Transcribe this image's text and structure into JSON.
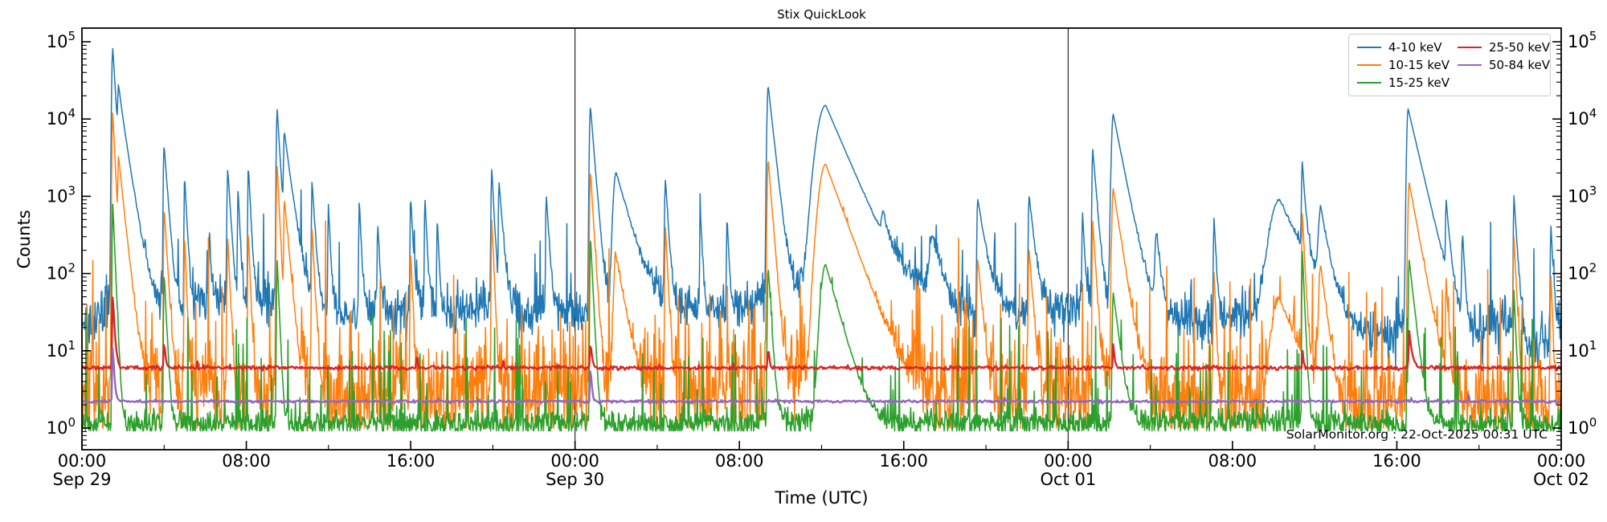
{
  "title": "Stix QuickLook",
  "xlabel": "Time (UTC)",
  "ylabel": "Counts",
  "watermark": "SolarMonitor.org : 22-Oct-2025 00:31 UTC",
  "chart_data": {
    "type": "line",
    "title": "Stix QuickLook",
    "xlabel": "Time (UTC)",
    "ylabel": "Counts",
    "x_axis": {
      "unit": "hours since Sep 29 00:00 UTC",
      "range_hours": [
        0,
        72
      ],
      "major_ticks": [
        {
          "t": 0,
          "label": "00:00",
          "date": "Sep 29"
        },
        {
          "t": 8,
          "label": "08:00",
          "date": ""
        },
        {
          "t": 16,
          "label": "16:00",
          "date": ""
        },
        {
          "t": 24,
          "label": "00:00",
          "date": "Sep 30"
        },
        {
          "t": 32,
          "label": "08:00",
          "date": ""
        },
        {
          "t": 40,
          "label": "16:00",
          "date": ""
        },
        {
          "t": 48,
          "label": "00:00",
          "date": "Oct 01"
        },
        {
          "t": 56,
          "label": "08:00",
          "date": ""
        },
        {
          "t": 64,
          "label": "16:00",
          "date": ""
        },
        {
          "t": 72,
          "label": "00:00",
          "date": "Oct 02"
        }
      ],
      "minor_tick_step_hours": 4,
      "day_boundary_lines_hours": [
        24,
        48
      ]
    },
    "y_axis": {
      "scale": "log",
      "range_log10": [
        -0.28,
        5.18
      ],
      "decade_labels": [
        0,
        1,
        2,
        3,
        4,
        5
      ],
      "labels_on_both_sides": true
    },
    "legend": {
      "position": "upper right",
      "entries": [
        {
          "label": "4-10 keV",
          "color": "#1f77b4"
        },
        {
          "label": "10-15 keV",
          "color": "#ff7f0e"
        },
        {
          "label": "15-25 keV",
          "color": "#2ca02c"
        },
        {
          "label": "25-50 keV",
          "color": "#d62728"
        },
        {
          "label": "50-84 keV",
          "color": "#9467bd"
        }
      ]
    },
    "series": [
      {
        "name": "4-10 keV",
        "color": "#1f77b4",
        "lw": 1.5,
        "n": 2600,
        "seed": 11,
        "noise_sigma_log10": 0.16,
        "burst": {
          "p": 0.012,
          "mag": 1.2
        },
        "floor": 6,
        "baseline_log10": [
          [
            0,
            1.3
          ],
          [
            1,
            1.5
          ],
          [
            2.5,
            1.85
          ],
          [
            3.2,
            1.7
          ],
          [
            4.5,
            1.55
          ],
          [
            6.5,
            1.7
          ],
          [
            7.5,
            1.55
          ],
          [
            9,
            1.7
          ],
          [
            10.5,
            1.75
          ],
          [
            12,
            1.5
          ],
          [
            13.5,
            1.45
          ],
          [
            14.5,
            1.6
          ],
          [
            15.5,
            1.45
          ],
          [
            16.5,
            1.7
          ],
          [
            17.5,
            1.5
          ],
          [
            18.5,
            1.55
          ],
          [
            20.5,
            1.7
          ],
          [
            21.5,
            1.5
          ],
          [
            23,
            1.45
          ],
          [
            24.5,
            1.5
          ],
          [
            25.5,
            1.6
          ],
          [
            27,
            1.65
          ],
          [
            28.5,
            1.55
          ],
          [
            29.5,
            1.6
          ],
          [
            31,
            1.5
          ],
          [
            32.5,
            1.55
          ],
          [
            34.5,
            1.8
          ],
          [
            35.5,
            1.75
          ],
          [
            37,
            1.7
          ],
          [
            38,
            1.6
          ],
          [
            39.5,
            1.8
          ],
          [
            40.5,
            1.75
          ],
          [
            41.5,
            1.85
          ],
          [
            42.5,
            1.55
          ],
          [
            43.5,
            1.5
          ],
          [
            44.5,
            1.65
          ],
          [
            45.5,
            1.5
          ],
          [
            46.5,
            1.55
          ],
          [
            48,
            1.5
          ],
          [
            49,
            1.6
          ],
          [
            50.8,
            1.7
          ],
          [
            52,
            1.45
          ],
          [
            53.5,
            1.5
          ],
          [
            54.5,
            1.35
          ],
          [
            56,
            1.45
          ],
          [
            57,
            1.55
          ],
          [
            58,
            1.7
          ],
          [
            59,
            1.75
          ],
          [
            60,
            1.7
          ],
          [
            61,
            1.5
          ],
          [
            62,
            1.25
          ],
          [
            63.5,
            1.15
          ],
          [
            65,
            1.5
          ],
          [
            66,
            1.35
          ],
          [
            67.5,
            1.15
          ],
          [
            68.5,
            1.3
          ],
          [
            69.5,
            1.4
          ],
          [
            70.5,
            1.1
          ],
          [
            71.5,
            1.15
          ],
          [
            72,
            1.3
          ]
        ],
        "flares": [
          [
            1.5,
            82000,
            0.05,
            0.1
          ],
          [
            1.78,
            23000,
            0.04,
            0.25
          ],
          [
            4.0,
            4500,
            0.04,
            0.12
          ],
          [
            5.0,
            1800,
            0.03,
            0.08
          ],
          [
            6.2,
            300,
            0.03,
            0.06
          ],
          [
            7.1,
            2200,
            0.04,
            0.1
          ],
          [
            7.6,
            1200,
            0.03,
            0.07
          ],
          [
            8.1,
            2400,
            0.03,
            0.08
          ],
          [
            9.5,
            13500,
            0.04,
            0.1
          ],
          [
            9.85,
            6500,
            0.04,
            0.22
          ],
          [
            11.2,
            1500,
            0.03,
            0.1
          ],
          [
            12.0,
            700,
            0.03,
            0.07
          ],
          [
            13.5,
            850,
            0.03,
            0.07
          ],
          [
            14.4,
            400,
            0.03,
            0.06
          ],
          [
            16.0,
            950,
            0.03,
            0.08
          ],
          [
            16.7,
            900,
            0.03,
            0.07
          ],
          [
            17.3,
            500,
            0.03,
            0.06
          ],
          [
            19.95,
            2200,
            0.04,
            0.08
          ],
          [
            20.3,
            1500,
            0.03,
            0.12
          ],
          [
            22.6,
            1000,
            0.03,
            0.1
          ],
          [
            24.75,
            14500,
            0.05,
            0.13
          ],
          [
            26.0,
            2000,
            0.15,
            0.45
          ],
          [
            28.4,
            1600,
            0.04,
            0.1
          ],
          [
            30.1,
            600,
            0.03,
            0.07
          ],
          [
            31.4,
            500,
            0.03,
            0.07
          ],
          [
            33.4,
            27000,
            0.06,
            0.18
          ],
          [
            36.2,
            15000,
            0.45,
            0.7
          ],
          [
            39.0,
            300,
            0.1,
            0.2
          ],
          [
            41.4,
            250,
            0.15,
            0.3
          ],
          [
            43.6,
            900,
            0.04,
            0.25
          ],
          [
            46.1,
            950,
            0.04,
            0.18
          ],
          [
            48.7,
            600,
            0.03,
            0.08
          ],
          [
            49.2,
            4000,
            0.04,
            0.13
          ],
          [
            50.2,
            11500,
            0.09,
            0.32
          ],
          [
            52.3,
            300,
            0.08,
            0.15
          ],
          [
            55.1,
            500,
            0.03,
            0.08
          ],
          [
            58.3,
            850,
            0.5,
            0.7
          ],
          [
            59.4,
            2600,
            0.04,
            0.1
          ],
          [
            60.3,
            650,
            0.12,
            0.25
          ],
          [
            64.55,
            13500,
            0.07,
            0.38
          ],
          [
            66.4,
            800,
            0.03,
            0.12
          ],
          [
            67.2,
            300,
            0.04,
            0.08
          ],
          [
            69.7,
            1000,
            0.03,
            0.1
          ],
          [
            71.5,
            400,
            0.03,
            0.08
          ]
        ]
      },
      {
        "name": "10-15 keV",
        "color": "#ff7f0e",
        "lw": 1.5,
        "n": 2600,
        "seed": 22,
        "noise_sigma_log10": 0.36,
        "burst": {
          "p": 0.05,
          "mag": 1.4
        },
        "floor": 1.0,
        "baseline_log10": [
          [
            0,
            0.6
          ],
          [
            1.2,
            0.4
          ],
          [
            2.5,
            0.65
          ],
          [
            4,
            0.5
          ],
          [
            6,
            0.55
          ],
          [
            8,
            0.55
          ],
          [
            10,
            0.5
          ],
          [
            12,
            0.42
          ],
          [
            14,
            0.5
          ],
          [
            16,
            0.52
          ],
          [
            18,
            0.45
          ],
          [
            20,
            0.5
          ],
          [
            22,
            0.45
          ],
          [
            24,
            0.5
          ],
          [
            26,
            0.42
          ],
          [
            28,
            0.5
          ],
          [
            30,
            0.45
          ],
          [
            32,
            0.5
          ],
          [
            34,
            0.65
          ],
          [
            36,
            0.75
          ],
          [
            37.5,
            0.55
          ],
          [
            39,
            0.5
          ],
          [
            41,
            0.55
          ],
          [
            43,
            0.48
          ],
          [
            45,
            0.45
          ],
          [
            47,
            0.5
          ],
          [
            49,
            0.5
          ],
          [
            50.5,
            0.55
          ],
          [
            52,
            0.4
          ],
          [
            54,
            0.33
          ],
          [
            56,
            0.4
          ],
          [
            58,
            0.48
          ],
          [
            60,
            0.38
          ],
          [
            61.5,
            0.3
          ],
          [
            63,
            0.33
          ],
          [
            65,
            0.42
          ],
          [
            66.5,
            0.33
          ],
          [
            68,
            0.3
          ],
          [
            70,
            0.33
          ],
          [
            72,
            0.4
          ]
        ],
        "flares": [
          [
            1.5,
            12000,
            0.04,
            0.08
          ],
          [
            1.78,
            3000,
            0.03,
            0.18
          ],
          [
            4.0,
            700,
            0.03,
            0.1
          ],
          [
            5.0,
            300,
            0.03,
            0.06
          ],
          [
            7.1,
            300,
            0.03,
            0.07
          ],
          [
            8.1,
            350,
            0.03,
            0.06
          ],
          [
            9.5,
            2500,
            0.04,
            0.08
          ],
          [
            9.85,
            900,
            0.03,
            0.15
          ],
          [
            11.2,
            400,
            0.03,
            0.08
          ],
          [
            16.0,
            200,
            0.03,
            0.06
          ],
          [
            19.95,
            500,
            0.03,
            0.07
          ],
          [
            24.75,
            2100,
            0.04,
            0.1
          ],
          [
            26.0,
            160,
            0.12,
            0.3
          ],
          [
            28.4,
            400,
            0.03,
            0.08
          ],
          [
            33.4,
            3000,
            0.05,
            0.13
          ],
          [
            36.2,
            2600,
            0.35,
            0.6
          ],
          [
            43.6,
            150,
            0.04,
            0.15
          ],
          [
            46.1,
            200,
            0.04,
            0.12
          ],
          [
            49.2,
            470,
            0.03,
            0.1
          ],
          [
            50.2,
            1250,
            0.07,
            0.25
          ],
          [
            55.1,
            100,
            0.03,
            0.07
          ],
          [
            58.3,
            45,
            0.4,
            0.6
          ],
          [
            59.4,
            600,
            0.03,
            0.08
          ],
          [
            60.3,
            120,
            0.1,
            0.2
          ],
          [
            64.6,
            1500,
            0.06,
            0.3
          ],
          [
            66.4,
            80,
            0.03,
            0.08
          ],
          [
            69.7,
            300,
            0.03,
            0.08
          ],
          [
            71.5,
            90,
            0.03,
            0.06
          ]
        ]
      },
      {
        "name": "15-25 keV",
        "color": "#2ca02c",
        "lw": 1.6,
        "n": 2600,
        "seed": 33,
        "noise_sigma_log10": 0.09,
        "burst": {
          "p": 0.05,
          "mag": 1.4
        },
        "floor": 0.92,
        "baseline_log10": [
          [
            0,
            0.06
          ],
          [
            10,
            0.05
          ],
          [
            20,
            0.06
          ],
          [
            30,
            0.05
          ],
          [
            34.5,
            0.1
          ],
          [
            36.5,
            0.12
          ],
          [
            38,
            0.06
          ],
          [
            48,
            0.05
          ],
          [
            57.5,
            0.1
          ],
          [
            58.5,
            0.12
          ],
          [
            60,
            0.06
          ],
          [
            72,
            0.05
          ]
        ],
        "flares": [
          [
            1.5,
            800,
            0.03,
            0.07
          ],
          [
            4.0,
            100,
            0.03,
            0.08
          ],
          [
            9.5,
            150,
            0.03,
            0.07
          ],
          [
            24.75,
            300,
            0.03,
            0.08
          ],
          [
            33.4,
            120,
            0.04,
            0.1
          ],
          [
            36.2,
            130,
            0.25,
            0.45
          ],
          [
            50.2,
            55,
            0.05,
            0.2
          ],
          [
            59.4,
            200,
            0.025,
            0.07
          ],
          [
            64.6,
            150,
            0.04,
            0.18
          ],
          [
            69.7,
            60,
            0.03,
            0.07
          ]
        ]
      },
      {
        "name": "25-50 keV",
        "color": "#d62728",
        "lw": 2.4,
        "n": 1500,
        "seed": 44,
        "noise_sigma_log10": 0.013,
        "burst": {
          "p": 0.004,
          "mag": 0.12
        },
        "floor": 0,
        "baseline_log10": [
          [
            0,
            0.78
          ],
          [
            72,
            0.78
          ]
        ],
        "flares": [
          [
            1.5,
            49,
            0.03,
            0.07
          ],
          [
            4.0,
            9,
            0.02,
            0.05
          ],
          [
            24.75,
            8,
            0.02,
            0.06
          ],
          [
            33.4,
            7,
            0.02,
            0.05
          ],
          [
            50.2,
            7,
            0.02,
            0.06
          ],
          [
            59.4,
            6,
            0.02,
            0.04
          ],
          [
            64.6,
            12,
            0.03,
            0.12
          ]
        ]
      },
      {
        "name": "50-84 keV",
        "color": "#9467bd",
        "lw": 2.4,
        "n": 1500,
        "seed": 55,
        "noise_sigma_log10": 0.009,
        "burst": {
          "p": 0.002,
          "mag": 0.08
        },
        "floor": 0,
        "baseline_log10": [
          [
            0,
            0.345
          ],
          [
            72,
            0.345
          ]
        ],
        "flares": [
          [
            1.5,
            10,
            0.03,
            0.06
          ],
          [
            24.75,
            5,
            0.02,
            0.05
          ]
        ]
      }
    ]
  }
}
